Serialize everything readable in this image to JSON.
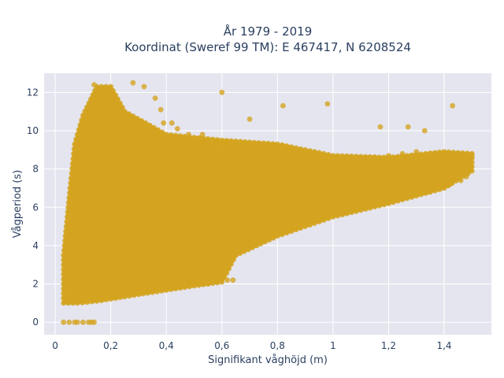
{
  "chart_data": {
    "type": "scatter",
    "title_line1": "År 1979 - 2019",
    "title_line2": "Koordinat (Sweref 99 TM): E 467417, N 6208524",
    "xlabel": "Signifikant våghöjd (m)",
    "ylabel": "Vågperiod (s)",
    "xlim": [
      -0.04,
      1.57
    ],
    "ylim": [
      -0.65,
      13.0
    ],
    "x_ticks": [
      0,
      0.2,
      0.4,
      0.6,
      0.8,
      1,
      1.2,
      1.4
    ],
    "x_tick_labels": [
      "0",
      "0,2",
      "0,4",
      "0,6",
      "0,8",
      "1",
      "1,2",
      "1,4"
    ],
    "y_ticks": [
      0,
      2,
      4,
      6,
      8,
      10,
      12
    ],
    "y_tick_labels": [
      "0",
      "2",
      "4",
      "6",
      "8",
      "10",
      "12"
    ],
    "grid": true,
    "plot_bgcolor": "#e5e5ef",
    "marker_color": "#d4a420",
    "dense_region_outline": [
      [
        0.03,
        1.0
      ],
      [
        0.08,
        1.0
      ],
      [
        0.15,
        1.1
      ],
      [
        0.3,
        1.45
      ],
      [
        0.5,
        1.9
      ],
      [
        0.6,
        2.1
      ],
      [
        0.65,
        3.5
      ],
      [
        0.8,
        4.5
      ],
      [
        1.0,
        5.5
      ],
      [
        1.2,
        6.2
      ],
      [
        1.4,
        7.0
      ],
      [
        1.5,
        7.9
      ],
      [
        1.5,
        8.8
      ],
      [
        1.4,
        8.9
      ],
      [
        1.2,
        8.6
      ],
      [
        1.0,
        8.7
      ],
      [
        0.8,
        9.3
      ],
      [
        0.6,
        9.5
      ],
      [
        0.4,
        9.8
      ],
      [
        0.25,
        11.0
      ],
      [
        0.2,
        12.3
      ],
      [
        0.15,
        12.3
      ],
      [
        0.1,
        10.8
      ],
      [
        0.07,
        9.3
      ],
      [
        0.05,
        6.5
      ],
      [
        0.03,
        3.5
      ]
    ],
    "series": [
      {
        "x": [
          0.03,
          0.05,
          0.07,
          0.08,
          0.1,
          0.12,
          0.13,
          0.14,
          0.04,
          0.06,
          0.05,
          0.04,
          0.06,
          0.08,
          0.07,
          0.09,
          0.1,
          0.12,
          0.11,
          0.15,
          0.17,
          0.19,
          0.21,
          0.23,
          0.24,
          0.26,
          0.27,
          0.29,
          0.31,
          0.33,
          0.35,
          0.3,
          0.4,
          0.45,
          0.5,
          0.22,
          0.18,
          0.16,
          0.14,
          0.28,
          0.32,
          0.36,
          0.38,
          0.42,
          0.44,
          0.48,
          0.52,
          0.56,
          0.58,
          0.6,
          0.62,
          0.66,
          0.7,
          0.74,
          0.78,
          0.82,
          0.86,
          0.9,
          0.94,
          0.98,
          1.0,
          1.02,
          1.05,
          1.1,
          1.15,
          1.2,
          1.25,
          1.3,
          1.35,
          1.4,
          1.45,
          1.5,
          0.55,
          0.65,
          0.68,
          0.72,
          0.76,
          0.8,
          0.84,
          0.88,
          0.92,
          0.96,
          1.04,
          1.08,
          1.12,
          1.16,
          1.22,
          1.28,
          1.34,
          1.38,
          1.42,
          1.46,
          1.48,
          0.12,
          0.19,
          0.25,
          0.34,
          0.46,
          0.62,
          0.64,
          0.35,
          0.52,
          0.43,
          0.28,
          0.15,
          0.2,
          0.23,
          0.26,
          0.3,
          0.34,
          0.37,
          0.41,
          0.47,
          0.66,
          0.72,
          0.79,
          0.85,
          0.93,
          1.01,
          1.13,
          1.24,
          1.36,
          1.47,
          0.82,
          0.98,
          1.17,
          1.27,
          1.33,
          1.43,
          0.6,
          0.7,
          0.53,
          0.39
        ],
        "y": [
          0.0,
          0.0,
          0.0,
          0.0,
          0.0,
          0.0,
          0.0,
          0.0,
          2.7,
          2.3,
          1.8,
          1.5,
          1.3,
          1.2,
          3.1,
          3.8,
          4.6,
          5.2,
          5.9,
          6.6,
          7.1,
          7.7,
          8.0,
          8.4,
          8.7,
          8.9,
          8.6,
          8.2,
          7.8,
          7.5,
          7.2,
          9.2,
          9.0,
          8.8,
          8.6,
          10.8,
          11.8,
          12.2,
          12.4,
          12.5,
          12.3,
          11.7,
          11.1,
          10.4,
          10.1,
          9.8,
          9.6,
          9.4,
          9.1,
          9.0,
          8.9,
          8.8,
          8.9,
          9.0,
          9.1,
          9.2,
          9.0,
          8.8,
          8.7,
          8.6,
          8.5,
          8.4,
          8.6,
          8.5,
          8.6,
          8.7,
          8.8,
          8.9,
          8.8,
          8.7,
          8.8,
          8.7,
          2.0,
          3.5,
          4.0,
          4.3,
          4.6,
          4.9,
          5.1,
          5.3,
          5.5,
          5.7,
          5.9,
          6.0,
          6.1,
          6.2,
          6.4,
          6.6,
          6.8,
          7.0,
          7.2,
          7.4,
          7.6,
          1.1,
          1.4,
          1.6,
          1.8,
          2.0,
          2.2,
          2.2,
          2.6,
          2.4,
          2.9,
          3.3,
          4.4,
          5.0,
          5.5,
          6.0,
          6.4,
          6.8,
          7.1,
          7.4,
          7.9,
          6.5,
          6.9,
          7.3,
          7.6,
          7.9,
          8.1,
          8.3,
          8.5,
          8.6,
          8.6,
          11.3,
          11.4,
          10.2,
          10.2,
          10.0,
          11.3,
          12.0,
          10.6,
          9.8,
          10.4
        ]
      }
    ]
  }
}
